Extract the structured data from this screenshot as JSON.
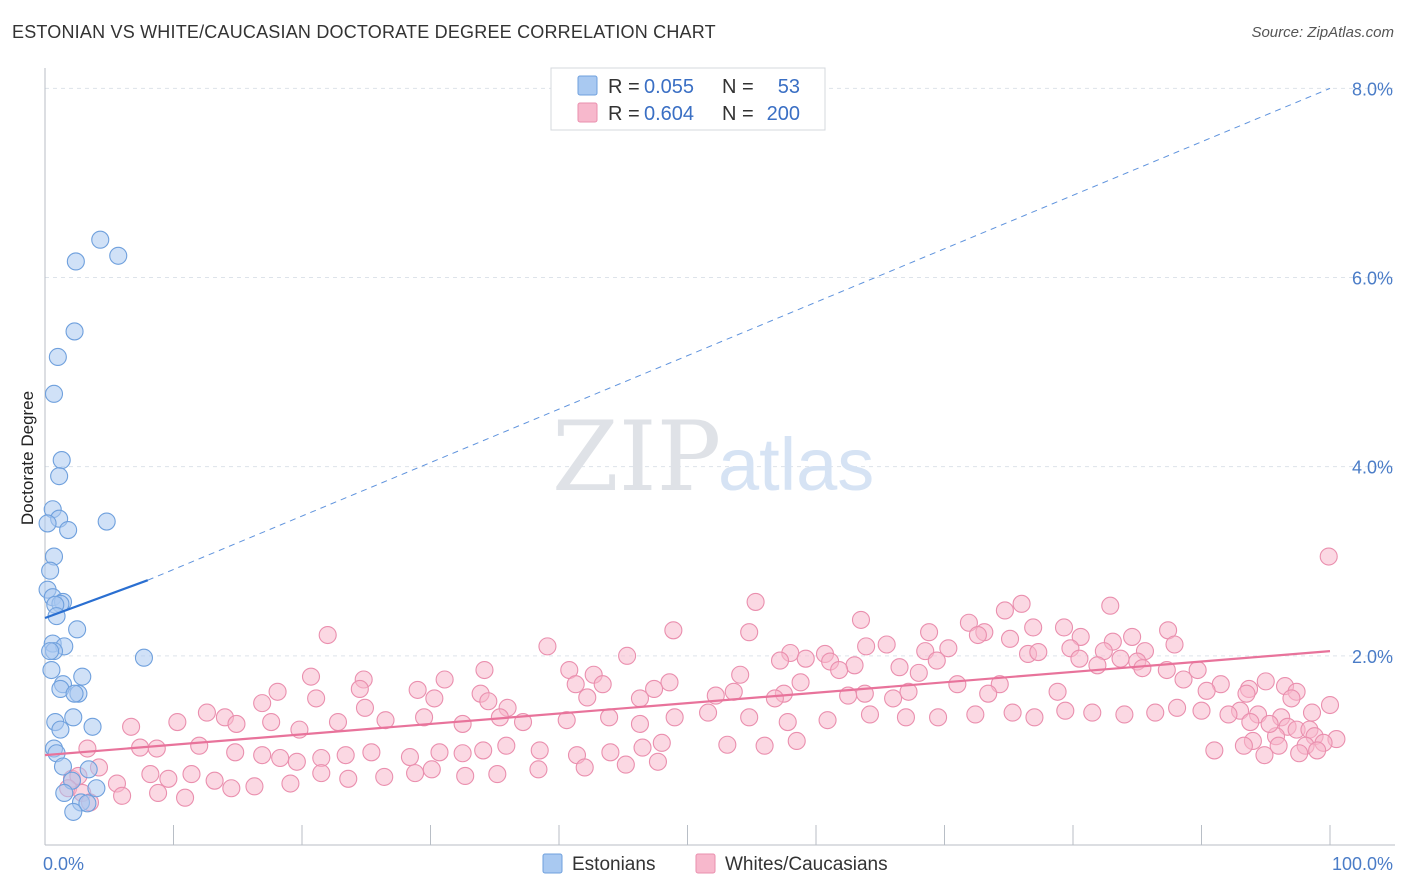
{
  "title": "ESTONIAN VS WHITE/CAUCASIAN DOCTORATE DEGREE CORRELATION CHART",
  "source": "Source: ZipAtlas.com",
  "watermark": {
    "zip": "ZIP",
    "atlas": "atlas"
  },
  "colors": {
    "estonian_fill": "#a9c9f1",
    "estonian_stroke": "#6fa0dd",
    "estonian_line": "#2a6fd1",
    "white_fill": "#f7b8cc",
    "white_stroke": "#ea8fae",
    "white_line": "#e8739b",
    "grid": "#dde3ea",
    "tick_label": "#4a7cc7"
  },
  "legend": {
    "rows": [
      {
        "r_label": "R =",
        "r_value": "0.055",
        "n_label": "N =",
        "n_value": "53"
      },
      {
        "r_label": "R =",
        "r_value": "0.604",
        "n_label": "N =",
        "n_value": "200"
      }
    ]
  },
  "bottom_legend": [
    "Estonians",
    "Whites/Caucasians"
  ],
  "chart_data": {
    "type": "scatter",
    "title": "ESTONIAN VS WHITE/CAUCASIAN DOCTORATE DEGREE CORRELATION CHART",
    "xlabel": "",
    "ylabel": "Doctorate Degree",
    "xlim": [
      0,
      100
    ],
    "ylim": [
      0,
      8.3
    ],
    "x_ticks": [
      0,
      10,
      20,
      30,
      40,
      50,
      60,
      70,
      80,
      90,
      100
    ],
    "x_tick_labels": {
      "0": "0.0%",
      "100": "100.0%"
    },
    "y_ticks": [
      2,
      4,
      6,
      8
    ],
    "y_tick_labels": [
      "2.0%",
      "4.0%",
      "6.0%",
      "8.0%"
    ],
    "grid": "horizontal dashed",
    "legend_position": "top-center",
    "series": [
      {
        "name": "Estonians",
        "r": 0.055,
        "n": 53,
        "trend": {
          "solid": [
            [
              0,
              2.4
            ],
            [
              8,
              2.8
            ]
          ],
          "dashed": [
            [
              8,
              2.8
            ],
            [
              100,
              8.0
            ]
          ]
        },
        "points": [
          [
            4.3,
            6.4
          ],
          [
            5.7,
            6.23
          ],
          [
            2.4,
            6.17
          ],
          [
            2.3,
            5.43
          ],
          [
            1.0,
            5.16
          ],
          [
            0.7,
            4.77
          ],
          [
            1.3,
            4.07
          ],
          [
            1.1,
            3.9
          ],
          [
            0.6,
            3.55
          ],
          [
            1.1,
            3.45
          ],
          [
            1.8,
            3.33
          ],
          [
            4.8,
            3.42
          ],
          [
            0.2,
            3.4
          ],
          [
            0.7,
            3.05
          ],
          [
            0.4,
            2.9
          ],
          [
            0.2,
            2.7
          ],
          [
            0.6,
            2.62
          ],
          [
            1.4,
            2.57
          ],
          [
            1.2,
            2.55
          ],
          [
            0.8,
            2.54
          ],
          [
            0.9,
            2.42
          ],
          [
            2.5,
            2.28
          ],
          [
            0.6,
            2.13
          ],
          [
            1.5,
            2.1
          ],
          [
            0.7,
            2.05
          ],
          [
            0.4,
            2.05
          ],
          [
            7.7,
            1.98
          ],
          [
            0.5,
            1.85
          ],
          [
            2.9,
            1.78
          ],
          [
            1.4,
            1.7
          ],
          [
            1.2,
            1.65
          ],
          [
            2.6,
            1.6
          ],
          [
            2.3,
            1.6
          ],
          [
            2.2,
            1.35
          ],
          [
            0.8,
            1.3
          ],
          [
            3.7,
            1.25
          ],
          [
            1.2,
            1.22
          ],
          [
            0.7,
            1.02
          ],
          [
            0.9,
            0.97
          ],
          [
            1.4,
            0.83
          ],
          [
            3.4,
            0.8
          ],
          [
            2.1,
            0.68
          ],
          [
            1.5,
            0.55
          ],
          [
            4.0,
            0.6
          ],
          [
            2.8,
            0.45
          ],
          [
            3.3,
            0.44
          ],
          [
            2.2,
            0.35
          ]
        ]
      },
      {
        "name": "Whites/Caucasians",
        "r": 0.604,
        "n": 200,
        "trend": {
          "solid": [
            [
              0,
              0.95
            ],
            [
              100,
              2.05
            ]
          ]
        },
        "points": [
          [
            99.9,
            3.05
          ],
          [
            55.3,
            2.57
          ],
          [
            82.9,
            2.53
          ],
          [
            76.0,
            2.55
          ],
          [
            74.7,
            2.48
          ],
          [
            63.5,
            2.38
          ],
          [
            71.9,
            2.35
          ],
          [
            76.9,
            2.3
          ],
          [
            79.3,
            2.3
          ],
          [
            22.0,
            2.22
          ],
          [
            48.9,
            2.27
          ],
          [
            54.8,
            2.25
          ],
          [
            68.8,
            2.25
          ],
          [
            73.1,
            2.25
          ],
          [
            87.4,
            2.27
          ],
          [
            75.1,
            2.18
          ],
          [
            72.6,
            2.22
          ],
          [
            80.6,
            2.2
          ],
          [
            84.6,
            2.2
          ],
          [
            87.9,
            2.12
          ],
          [
            83.1,
            2.15
          ],
          [
            63.9,
            2.1
          ],
          [
            65.5,
            2.12
          ],
          [
            39.1,
            2.1
          ],
          [
            70.3,
            2.08
          ],
          [
            79.8,
            2.08
          ],
          [
            85.6,
            2.05
          ],
          [
            82.4,
            2.05
          ],
          [
            60.7,
            2.02
          ],
          [
            68.5,
            2.05
          ],
          [
            76.5,
            2.02
          ],
          [
            77.3,
            2.04
          ],
          [
            58.0,
            2.03
          ],
          [
            45.3,
            2.0
          ],
          [
            57.2,
            1.95
          ],
          [
            59.2,
            1.97
          ],
          [
            69.4,
            1.95
          ],
          [
            80.5,
            1.97
          ],
          [
            83.7,
            1.97
          ],
          [
            85.0,
            1.94
          ],
          [
            61.1,
            1.94
          ],
          [
            63.0,
            1.9
          ],
          [
            66.5,
            1.88
          ],
          [
            61.8,
            1.85
          ],
          [
            85.4,
            1.87
          ],
          [
            89.7,
            1.85
          ],
          [
            87.3,
            1.85
          ],
          [
            81.9,
            1.9
          ],
          [
            40.8,
            1.85
          ],
          [
            68.0,
            1.82
          ],
          [
            42.7,
            1.8
          ],
          [
            54.1,
            1.8
          ],
          [
            31.1,
            1.75
          ],
          [
            48.6,
            1.72
          ],
          [
            58.8,
            1.72
          ],
          [
            71.0,
            1.7
          ],
          [
            74.3,
            1.7
          ],
          [
            88.6,
            1.75
          ],
          [
            95.0,
            1.73
          ],
          [
            93.7,
            1.65
          ],
          [
            91.5,
            1.7
          ],
          [
            96.5,
            1.68
          ],
          [
            97.4,
            1.62
          ],
          [
            24.8,
            1.75
          ],
          [
            20.7,
            1.78
          ],
          [
            34.2,
            1.85
          ],
          [
            41.3,
            1.7
          ],
          [
            43.4,
            1.7
          ],
          [
            47.4,
            1.65
          ],
          [
            53.6,
            1.62
          ],
          [
            57.5,
            1.6
          ],
          [
            62.5,
            1.58
          ],
          [
            52.2,
            1.58
          ],
          [
            33.9,
            1.6
          ],
          [
            24.5,
            1.65
          ],
          [
            29.0,
            1.64
          ],
          [
            42.2,
            1.56
          ],
          [
            46.3,
            1.55
          ],
          [
            56.8,
            1.55
          ],
          [
            63.8,
            1.6
          ],
          [
            66.0,
            1.55
          ],
          [
            67.2,
            1.62
          ],
          [
            73.4,
            1.6
          ],
          [
            78.8,
            1.62
          ],
          [
            90.4,
            1.63
          ],
          [
            93.5,
            1.6
          ],
          [
            97.0,
            1.55
          ],
          [
            100.0,
            1.48
          ],
          [
            98.6,
            1.4
          ],
          [
            94.4,
            1.38
          ],
          [
            93.0,
            1.42
          ],
          [
            96.2,
            1.35
          ],
          [
            96.7,
            1.25
          ],
          [
            97.4,
            1.22
          ],
          [
            98.4,
            1.22
          ],
          [
            98.8,
            1.15
          ],
          [
            100.5,
            1.12
          ],
          [
            99.5,
            1.08
          ],
          [
            98.1,
            1.05
          ],
          [
            95.8,
            1.15
          ],
          [
            96.0,
            1.05
          ],
          [
            94.0,
            1.1
          ],
          [
            93.3,
            1.05
          ],
          [
            91.0,
            1.0
          ],
          [
            94.9,
            0.95
          ],
          [
            97.6,
            0.97
          ],
          [
            99.0,
            1.0
          ],
          [
            34.5,
            1.52
          ],
          [
            36.0,
            1.45
          ],
          [
            30.3,
            1.55
          ],
          [
            24.9,
            1.45
          ],
          [
            18.1,
            1.62
          ],
          [
            21.1,
            1.55
          ],
          [
            16.9,
            1.5
          ],
          [
            12.6,
            1.4
          ],
          [
            14.0,
            1.35
          ],
          [
            6.7,
            1.25
          ],
          [
            10.3,
            1.3
          ],
          [
            14.9,
            1.28
          ],
          [
            17.6,
            1.3
          ],
          [
            19.8,
            1.22
          ],
          [
            22.8,
            1.3
          ],
          [
            26.5,
            1.32
          ],
          [
            29.5,
            1.35
          ],
          [
            32.5,
            1.28
          ],
          [
            35.4,
            1.35
          ],
          [
            37.2,
            1.3
          ],
          [
            40.6,
            1.32
          ],
          [
            43.9,
            1.35
          ],
          [
            46.3,
            1.28
          ],
          [
            49.0,
            1.35
          ],
          [
            51.6,
            1.4
          ],
          [
            54.8,
            1.35
          ],
          [
            57.8,
            1.3
          ],
          [
            60.9,
            1.32
          ],
          [
            64.2,
            1.38
          ],
          [
            67.0,
            1.35
          ],
          [
            69.5,
            1.35
          ],
          [
            72.4,
            1.38
          ],
          [
            75.3,
            1.4
          ],
          [
            77.0,
            1.35
          ],
          [
            79.4,
            1.42
          ],
          [
            81.5,
            1.4
          ],
          [
            84.0,
            1.38
          ],
          [
            86.4,
            1.4
          ],
          [
            88.1,
            1.45
          ],
          [
            90.0,
            1.42
          ],
          [
            92.1,
            1.38
          ],
          [
            93.8,
            1.3
          ],
          [
            95.3,
            1.28
          ],
          [
            3.3,
            1.02
          ],
          [
            7.4,
            1.03
          ],
          [
            8.7,
            1.02
          ],
          [
            12.0,
            1.05
          ],
          [
            14.8,
            0.98
          ],
          [
            16.9,
            0.95
          ],
          [
            18.3,
            0.92
          ],
          [
            19.6,
            0.88
          ],
          [
            21.5,
            0.92
          ],
          [
            23.4,
            0.95
          ],
          [
            25.4,
            0.98
          ],
          [
            28.4,
            0.93
          ],
          [
            30.7,
            0.98
          ],
          [
            32.5,
            0.97
          ],
          [
            34.1,
            1.0
          ],
          [
            35.9,
            1.05
          ],
          [
            38.5,
            1.0
          ],
          [
            41.4,
            0.95
          ],
          [
            44.0,
            0.98
          ],
          [
            46.5,
            1.03
          ],
          [
            48.0,
            1.08
          ],
          [
            53.1,
            1.06
          ],
          [
            56.0,
            1.05
          ],
          [
            58.5,
            1.1
          ],
          [
            2.1,
            0.7
          ],
          [
            2.6,
            0.73
          ],
          [
            4.2,
            0.82
          ],
          [
            5.6,
            0.65
          ],
          [
            8.2,
            0.75
          ],
          [
            9.6,
            0.7
          ],
          [
            11.4,
            0.75
          ],
          [
            13.2,
            0.68
          ],
          [
            14.5,
            0.6
          ],
          [
            16.3,
            0.62
          ],
          [
            19.1,
            0.65
          ],
          [
            21.5,
            0.76
          ],
          [
            23.6,
            0.7
          ],
          [
            26.4,
            0.72
          ],
          [
            28.8,
            0.76
          ],
          [
            30.1,
            0.8
          ],
          [
            32.7,
            0.73
          ],
          [
            35.2,
            0.75
          ],
          [
            38.4,
            0.8
          ],
          [
            42.0,
            0.82
          ],
          [
            45.2,
            0.85
          ],
          [
            47.7,
            0.88
          ],
          [
            1.8,
            0.6
          ],
          [
            2.9,
            0.55
          ],
          [
            3.5,
            0.45
          ],
          [
            6.0,
            0.52
          ],
          [
            8.8,
            0.55
          ],
          [
            10.9,
            0.5
          ]
        ]
      }
    ]
  }
}
